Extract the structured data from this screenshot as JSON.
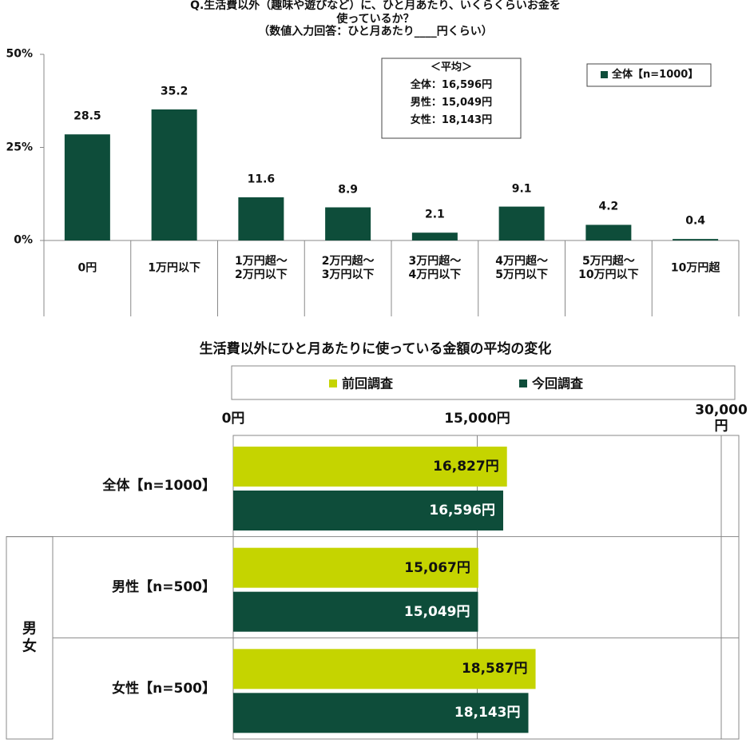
{
  "chart_data": [
    {
      "type": "bar",
      "title": "Q.生活費以外（趣味や遊びなど）に、ひと月あたり、いくらくらいお金を使っているか？",
      "subtitle": "（数値入力回答：ひと月あたり____円くらい）",
      "categories": [
        "0円",
        "1万円以下",
        "1万円超～\n2万円以下",
        "2万円超～\n3万円以下",
        "3万円超～\n4万円以下",
        "4万円超～\n5万円以下",
        "5万円超～\n10万円以下",
        "10万円超"
      ],
      "series": [
        {
          "name": "全体【n=1000】",
          "color": "#0e4d3a",
          "values": [
            28.5,
            35.2,
            11.6,
            8.9,
            2.1,
            9.1,
            4.2,
            0.4
          ]
        }
      ],
      "ylim": [
        0,
        50
      ],
      "yticks": [
        {
          "value": 0,
          "label": "0%"
        },
        {
          "value": 25,
          "label": "25%"
        },
        {
          "value": 50,
          "label": "50%"
        }
      ],
      "grid": false,
      "annotation": [
        "＜平均＞",
        "全体：16,596円",
        "男性：15,049円",
        "女性：18,143円"
      ]
    },
    {
      "type": "barh",
      "title": "生活費以外にひと月あたりに使っている金額の平均の変化",
      "categories": [
        "全体【n=1000】",
        "男性【n=500】",
        "女性【n=500】"
      ],
      "group_label": "男女",
      "series": [
        {
          "name": "前回調査",
          "color": "#c5d400",
          "values": [
            16827,
            15067,
            18587
          ],
          "value_labels": [
            "16,827円",
            "15,067円",
            "18,587円"
          ]
        },
        {
          "name": "今回調査",
          "color": "#0e4d3a",
          "values": [
            16596,
            15049,
            18143
          ],
          "value_labels": [
            "16,596円",
            "15,049円",
            "18,143円"
          ]
        }
      ],
      "xlim": [
        0,
        30000
      ],
      "xticks": [
        {
          "value": 0,
          "label": "0円"
        },
        {
          "value": 15000,
          "label": "15,000円"
        },
        {
          "value": 30000,
          "label": "30,000円"
        }
      ],
      "grid": true
    }
  ]
}
